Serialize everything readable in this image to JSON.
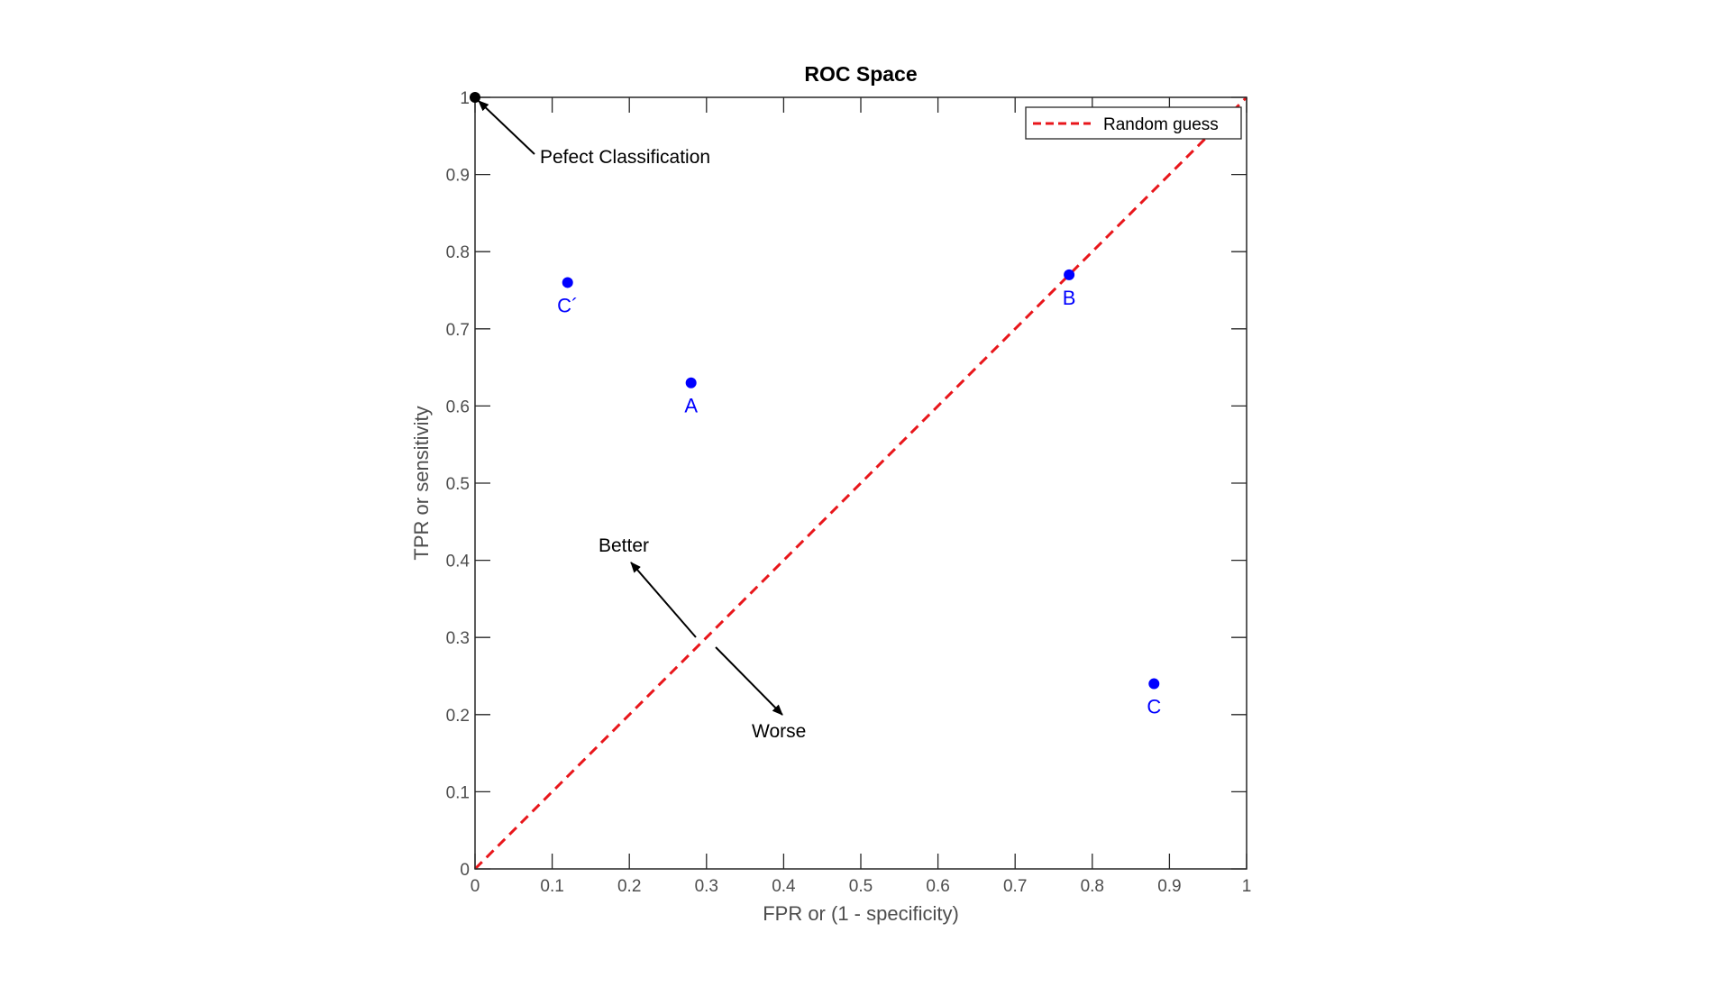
{
  "chart_data": {
    "type": "scatter",
    "title": "ROC Space",
    "xlabel": "FPR or (1 - specificity)",
    "ylabel": "TPR or sensitivity",
    "xlim": [
      0,
      1
    ],
    "ylim": [
      0,
      1
    ],
    "xticks": [
      0,
      0.1,
      0.2,
      0.3,
      0.4,
      0.5,
      0.6,
      0.7,
      0.8,
      0.9,
      1
    ],
    "xtick_labels": [
      "0",
      "0.1",
      "0.2",
      "0.3",
      "0.4",
      "0.5",
      "0.6",
      "0.7",
      "0.8",
      "0.9",
      "1"
    ],
    "yticks": [
      0,
      0.1,
      0.2,
      0.3,
      0.4,
      0.5,
      0.6,
      0.7,
      0.8,
      0.9,
      1
    ],
    "ytick_labels": [
      "0",
      "0.1",
      "0.2",
      "0.3",
      "0.4",
      "0.5",
      "0.6",
      "0.7",
      "0.8",
      "0.9",
      "1"
    ],
    "grid": false,
    "legend": {
      "placement": "top-right",
      "entries": [
        {
          "label": "Random guess",
          "color": "#e8161b",
          "style": "dashed"
        }
      ]
    },
    "points": [
      {
        "label": "A",
        "x": 0.28,
        "y": 0.63,
        "color": "#0000ff"
      },
      {
        "label": "B",
        "x": 0.77,
        "y": 0.77,
        "color": "#0000ff"
      },
      {
        "label": "C",
        "x": 0.88,
        "y": 0.24,
        "color": "#0000ff"
      },
      {
        "label": "C´",
        "x": 0.12,
        "y": 0.76,
        "color": "#0000ff"
      }
    ],
    "random_guess_line": {
      "x": [
        0,
        1
      ],
      "y": [
        0,
        1
      ],
      "color": "#e8161b"
    },
    "perfect_point": {
      "x": 0,
      "y": 1,
      "color": "#000000"
    },
    "annotations": [
      {
        "text": "Pefect Classification",
        "points_to": [
          0,
          1
        ]
      },
      {
        "text": "Better",
        "direction": "toward top-left"
      },
      {
        "text": "Worse",
        "direction": "toward bottom-right"
      }
    ]
  }
}
